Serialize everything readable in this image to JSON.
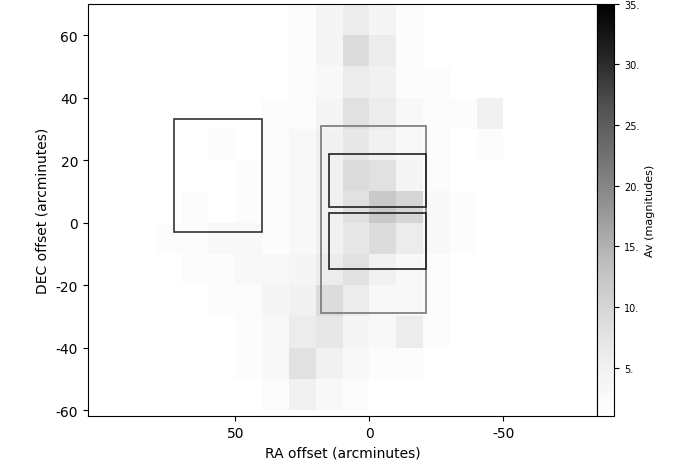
{
  "chart_data": {
    "type": "heatmap",
    "xlabel": "RA offset (arcminutes)",
    "ylabel": "DEC offset (arcminutes)",
    "xlim": [
      105,
      -85
    ],
    "ylim": [
      -62,
      70
    ],
    "xticks": [
      50,
      0,
      -50
    ],
    "yticks": [
      -60,
      -40,
      -20,
      0,
      20,
      40,
      60
    ],
    "x_edges": [
      100,
      90,
      80,
      70,
      60,
      50,
      40,
      30,
      20,
      10,
      0,
      -10,
      -20,
      -30,
      -40,
      -50,
      -60,
      -70,
      -80
    ],
    "y_edges": [
      -60,
      -50,
      -40,
      -30,
      -20,
      -10,
      0,
      10,
      20,
      30,
      40,
      50,
      60,
      70
    ],
    "cells": [
      [
        null,
        null,
        null,
        null,
        1,
        1,
        2,
        5,
        3,
        2,
        1,
        1,
        1,
        1,
        null,
        null,
        null,
        null
      ],
      [
        null,
        null,
        1,
        1,
        1,
        2,
        3,
        8,
        5,
        3,
        2,
        2,
        1,
        1,
        1,
        null,
        null,
        null
      ],
      [
        null,
        1,
        1,
        1,
        1,
        2,
        3,
        6,
        7,
        4,
        3,
        6,
        2,
        1,
        1,
        1,
        null,
        null
      ],
      [
        1,
        1,
        1,
        1,
        2,
        2,
        4,
        5,
        9,
        6,
        3,
        3,
        2,
        1,
        1,
        1,
        1,
        null
      ],
      [
        1,
        1,
        1,
        2,
        2,
        3,
        3,
        4,
        6,
        8,
        5,
        3,
        2,
        1,
        1,
        1,
        1,
        null
      ],
      [
        1,
        1,
        2,
        2,
        3,
        3,
        2,
        3,
        5,
        7,
        9,
        6,
        3,
        2,
        1,
        1,
        1,
        null
      ],
      [
        1,
        1,
        1,
        2,
        1,
        2,
        2,
        3,
        5,
        8,
        12,
        10,
        3,
        2,
        1,
        1,
        1,
        null
      ],
      [
        1,
        1,
        1,
        1,
        1,
        2,
        2,
        3,
        5,
        9,
        8,
        4,
        2,
        1,
        1,
        1,
        1,
        null
      ],
      [
        1,
        1,
        1,
        1,
        2,
        1,
        2,
        3,
        5,
        7,
        5,
        3,
        2,
        1,
        2,
        1,
        1,
        null
      ],
      [
        null,
        1,
        1,
        1,
        1,
        1,
        2,
        2,
        4,
        8,
        6,
        3,
        2,
        2,
        5,
        1,
        null,
        null
      ],
      [
        null,
        null,
        1,
        1,
        1,
        1,
        1,
        2,
        3,
        6,
        5,
        2,
        2,
        1,
        1,
        null,
        null,
        null
      ],
      [
        null,
        null,
        null,
        1,
        1,
        1,
        1,
        2,
        4,
        9,
        6,
        2,
        1,
        1,
        null,
        null,
        null,
        null
      ],
      [
        null,
        null,
        null,
        null,
        1,
        1,
        1,
        2,
        4,
        6,
        4,
        2,
        1,
        null,
        null,
        null,
        null,
        null
      ]
    ],
    "colorbar": {
      "label": "Av (magnitudes)",
      "range": [
        1,
        35
      ],
      "ticks": [
        {
          "value": 5,
          "label": "5."
        },
        {
          "value": 10,
          "label": "10."
        },
        {
          "value": 15,
          "label": "15."
        },
        {
          "value": 20,
          "label": "20."
        },
        {
          "value": 25,
          "label": "25."
        },
        {
          "value": 30,
          "label": "30."
        },
        {
          "value": 35,
          "label": "35."
        }
      ]
    },
    "regions": [
      {
        "ra": [
          73,
          40
        ],
        "dec": [
          -3,
          33
        ]
      },
      {
        "ra": [
          18,
          -21
        ],
        "dec": [
          -29,
          31
        ]
      },
      {
        "ra": [
          15,
          -21
        ],
        "dec": [
          5,
          22
        ]
      },
      {
        "ra": [
          15,
          -21
        ],
        "dec": [
          -15,
          3
        ]
      }
    ]
  }
}
